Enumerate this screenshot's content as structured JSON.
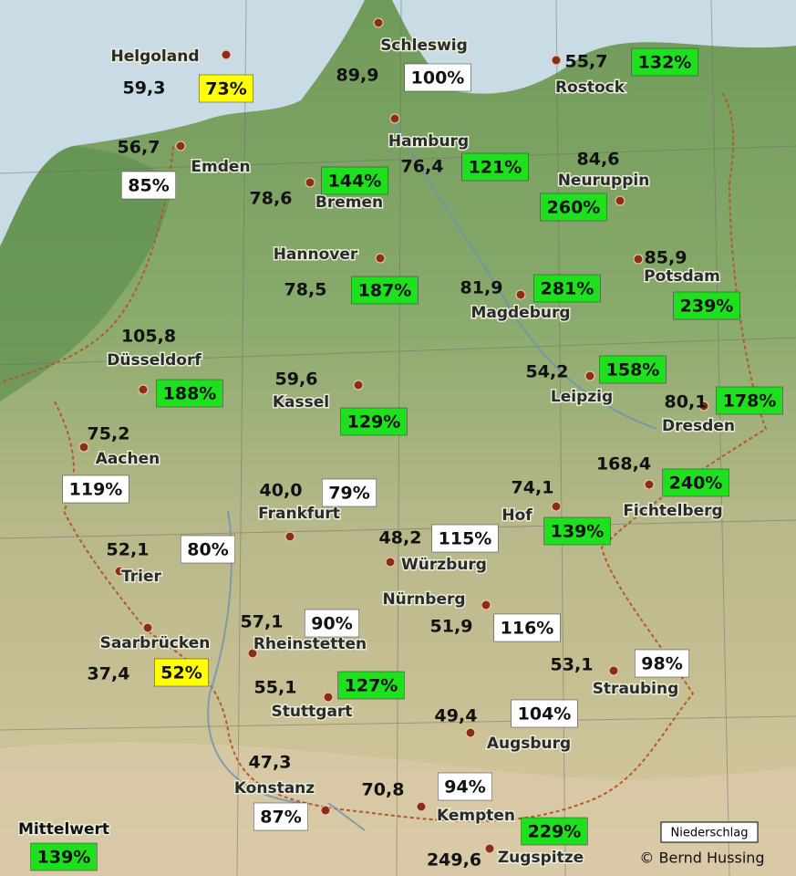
{
  "title": "Niederschlag",
  "credit": "© Bernd Hussing",
  "average": {
    "label": "Mittelwert",
    "percent": "139%",
    "badge": "#1ee01e"
  },
  "stations": [
    {
      "name": "Helgoland",
      "value": "59,3",
      "percent": "73%",
      "badge": "#ffff00"
    },
    {
      "name": "Schleswig",
      "value": "89,9",
      "percent": "100%",
      "badge": "#ffffff"
    },
    {
      "name": "Rostock",
      "value": "55,7",
      "percent": "132%",
      "badge": "#1ee01e"
    },
    {
      "name": "Emden",
      "value": "56,7",
      "percent": "85%",
      "badge": "#ffffff"
    },
    {
      "name": "Hamburg",
      "value": "76,4",
      "percent": "121%",
      "badge": "#1ee01e"
    },
    {
      "name": "Bremen",
      "value": "78,6",
      "percent": "144%",
      "badge": "#1ee01e"
    },
    {
      "name": "Neuruppin",
      "value": "84,6",
      "percent": "260%",
      "badge": "#1ee01e"
    },
    {
      "name": "Hannover",
      "value": "78,5",
      "percent": "187%",
      "badge": "#1ee01e"
    },
    {
      "name": "Magdeburg",
      "value": "81,9",
      "percent": "281%",
      "badge": "#1ee01e"
    },
    {
      "name": "Potsdam",
      "value": "85,9",
      "percent": "239%",
      "badge": "#1ee01e"
    },
    {
      "name": "Düsseldorf",
      "value": "105,8",
      "percent": "188%",
      "badge": "#1ee01e"
    },
    {
      "name": "Kassel",
      "value": "59,6",
      "percent": "129%",
      "badge": "#1ee01e"
    },
    {
      "name": "Leipzig",
      "value": "54,2",
      "percent": "158%",
      "badge": "#1ee01e"
    },
    {
      "name": "Dresden",
      "value": "80,1",
      "percent": "178%",
      "badge": "#1ee01e"
    },
    {
      "name": "Aachen",
      "value": "75,2",
      "percent": "119%",
      "badge": "#ffffff"
    },
    {
      "name": "Fichtelberg",
      "value": "168,4",
      "percent": "240%",
      "badge": "#1ee01e"
    },
    {
      "name": "Frankfurt",
      "value": "40,0",
      "percent": "79%",
      "badge": "#ffffff"
    },
    {
      "name": "Hof",
      "value": "74,1",
      "percent": "139%",
      "badge": "#1ee01e"
    },
    {
      "name": "Würzburg",
      "value": "48,2",
      "percent": "115%",
      "badge": "#ffffff"
    },
    {
      "name": "Trier",
      "value": "52,1",
      "percent": "80%",
      "badge": "#ffffff"
    },
    {
      "name": "Nürnberg",
      "value": "51,9",
      "percent": "116%",
      "badge": "#ffffff"
    },
    {
      "name": "Saarbrücken",
      "value": "37,4",
      "percent": "52%",
      "badge": "#ffff00"
    },
    {
      "name": "Rheinstetten",
      "value": "57,1",
      "percent": "90%",
      "badge": "#ffffff"
    },
    {
      "name": "Straubing",
      "value": "53,1",
      "percent": "98%",
      "badge": "#ffffff"
    },
    {
      "name": "Stuttgart",
      "value": "55,1",
      "percent": "127%",
      "badge": "#1ee01e"
    },
    {
      "name": "Augsburg",
      "value": "49,4",
      "percent": "104%",
      "badge": "#ffffff"
    },
    {
      "name": "Konstanz",
      "value": "47,3",
      "percent": "87%",
      "badge": "#ffffff"
    },
    {
      "name": "Kempten",
      "value": "70,8",
      "percent": "94%",
      "badge": "#ffffff"
    },
    {
      "name": "Zugspitze",
      "value": "249,6",
      "percent": "229%",
      "badge": "#1ee01e"
    }
  ]
}
